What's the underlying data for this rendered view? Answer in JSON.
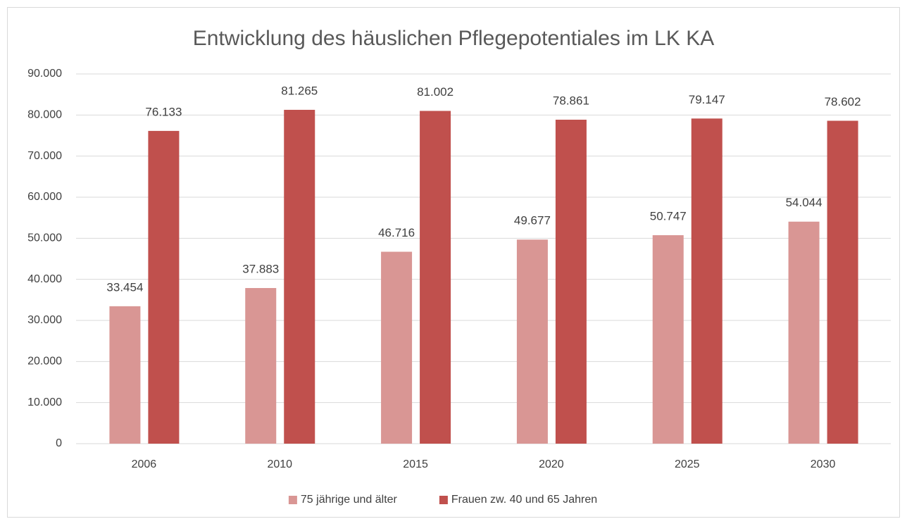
{
  "chart_data": {
    "type": "bar",
    "title": "Entwicklung des häuslichen Pflegepotentiales im LK KA",
    "categories": [
      "2006",
      "2010",
      "2015",
      "2020",
      "2025",
      "2030"
    ],
    "series": [
      {
        "name": "75 jährige und älter",
        "color": "#d99694",
        "values": [
          33454,
          37883,
          46716,
          49677,
          50747,
          54044
        ],
        "value_labels": [
          "33.454",
          "37.883",
          "46.716",
          "49.677",
          "50.747",
          "54.044"
        ]
      },
      {
        "name": "Frauen zw. 40 und 65 Jahren",
        "color": "#c0504d",
        "values": [
          76133,
          81265,
          81002,
          78861,
          79147,
          78602
        ],
        "value_labels": [
          "76.133",
          "81.265",
          "81.002",
          "78.861",
          "79.147",
          "78.602"
        ]
      }
    ],
    "ylim": [
      0,
      90000
    ],
    "yticks": [
      0,
      {
        "value": 10000,
        "label": "10.000"
      },
      {
        "value": 20000,
        "label": "20.000"
      },
      {
        "value": 30000,
        "label": "30.000"
      },
      {
        "value": 40000,
        "label": "40.000"
      },
      {
        "value": 50000,
        "label": "50.000"
      },
      {
        "value": 60000,
        "label": "60.000"
      },
      {
        "value": 70000,
        "label": "70.000"
      },
      {
        "value": 80000,
        "label": "80.000"
      },
      {
        "value": 90000,
        "label": "90.000"
      }
    ],
    "grid": true,
    "legend": "bottom"
  }
}
